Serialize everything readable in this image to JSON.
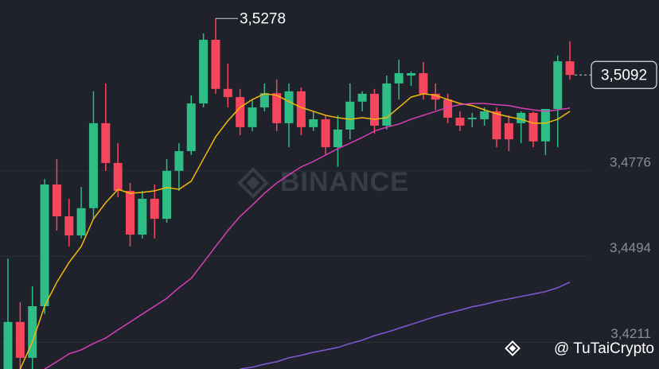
{
  "chart_data": {
    "type": "candlestick",
    "up_color": "#2ebd85",
    "down_color": "#f6465d",
    "open": [
      3.4123,
      3.4278,
      3.416,
      3.433,
      3.4731,
      3.4626,
      3.4563,
      3.4653,
      3.4933,
      3.4802,
      3.471,
      3.4566,
      3.4684,
      3.4618,
      3.4776,
      3.4841,
      3.4998,
      3.5208,
      3.5046,
      3.5019,
      3.492,
      3.4985,
      3.5032,
      3.4933,
      3.5038,
      3.492,
      3.4946,
      3.4854,
      3.4912,
      3.5004,
      3.503,
      3.4925,
      3.5064,
      3.509,
      3.5098,
      3.503,
      3.5011,
      3.4951,
      3.4946,
      3.4946,
      3.4972,
      3.4933,
      3.4933,
      3.4967,
      3.4873,
      3.498,
      3.5137
    ],
    "high": [
      3.4487,
      3.4343,
      3.4396,
      3.4749,
      3.4815,
      3.4684,
      3.4723,
      3.5038,
      3.5064,
      3.4867,
      3.4736,
      3.471,
      3.4731,
      3.4815,
      3.4867,
      3.5025,
      3.5229,
      3.5278,
      3.5129,
      3.5046,
      3.5011,
      3.5064,
      3.5077,
      3.5064,
      3.5051,
      3.4972,
      3.4959,
      3.4959,
      3.5064,
      3.5038,
      3.5046,
      3.509,
      3.5142,
      3.5103,
      3.5135,
      3.5064,
      3.503,
      3.4972,
      3.4967,
      3.4985,
      3.4985,
      3.4959,
      3.4972,
      3.4972,
      3.498,
      3.5156,
      3.5203
    ],
    "low": [
      3.4123,
      3.4123,
      3.4123,
      3.4304,
      3.4579,
      3.4527,
      3.4553,
      3.4618,
      3.4776,
      3.4689,
      3.4527,
      3.4553,
      3.4553,
      3.4605,
      3.471,
      3.4828,
      3.4985,
      3.503,
      3.4985,
      3.4894,
      3.4907,
      3.4972,
      3.4907,
      3.4854,
      3.4894,
      3.4907,
      3.4828,
      3.4789,
      3.488,
      3.4972,
      3.4899,
      3.4912,
      3.5011,
      3.5056,
      3.5011,
      3.4977,
      3.4933,
      3.4907,
      3.492,
      3.4925,
      3.4854,
      3.4841,
      3.4867,
      3.4854,
      3.4828,
      3.4854,
      3.5077
    ],
    "close": [
      3.4278,
      3.416,
      3.433,
      3.4731,
      3.4626,
      3.4563,
      3.4653,
      3.4933,
      3.4802,
      3.471,
      3.4566,
      3.4684,
      3.4618,
      3.4776,
      3.4841,
      3.4998,
      3.5208,
      3.5046,
      3.5019,
      3.492,
      3.4985,
      3.5032,
      3.4933,
      3.5038,
      3.492,
      3.4946,
      3.4854,
      3.4912,
      3.5004,
      3.503,
      3.4925,
      3.5064,
      3.5098,
      3.5098,
      3.503,
      3.5011,
      3.4951,
      3.4925,
      3.4951,
      3.4972,
      3.488,
      3.488,
      3.4967,
      3.4873,
      3.498,
      3.5137,
      3.5092
    ],
    "lines": [
      {
        "color": "#f0b90b",
        "values": [
          null,
          3.4123,
          3.4212,
          3.433,
          3.4409,
          3.4474,
          3.4527,
          3.4618,
          3.4671,
          3.4715,
          3.4702,
          3.4705,
          3.471,
          3.4721,
          3.4715,
          3.4742,
          3.4815,
          3.4888,
          3.4941,
          3.4985,
          3.5011,
          3.503,
          3.5025,
          3.5004,
          3.4985,
          3.4972,
          3.4959,
          3.4951,
          3.4946,
          3.4951,
          3.4946,
          3.4951,
          3.4985,
          3.5019,
          3.503,
          3.5025,
          3.5011,
          3.4998,
          3.4991,
          3.4977,
          3.4964,
          3.4954,
          3.4946,
          3.4933,
          3.4933,
          3.4946,
          3.4972
        ]
      },
      {
        "color": "#d63fb5",
        "values": [
          null,
          null,
          null,
          3.4123,
          3.4147,
          3.4173,
          3.4186,
          3.4207,
          3.4225,
          3.4252,
          3.4278,
          3.4304,
          3.433,
          3.4356,
          3.4391,
          3.4422,
          3.4474,
          3.4527,
          3.4579,
          3.4626,
          3.4663,
          3.4702,
          3.4736,
          3.4763,
          3.4789,
          3.4807,
          3.4828,
          3.4849,
          3.4867,
          3.4886,
          3.4907,
          3.492,
          3.493,
          3.4946,
          3.4959,
          3.4972,
          3.4985,
          3.4994,
          3.4998,
          3.4998,
          3.4994,
          3.4991,
          3.4983,
          3.4977,
          3.4972,
          3.4977,
          3.4983
        ]
      },
      {
        "color": "#8257d8",
        "values": [
          null,
          null,
          null,
          null,
          null,
          null,
          null,
          null,
          null,
          null,
          null,
          null,
          null,
          null,
          null,
          null,
          null,
          null,
          null,
          3.4123,
          3.4129,
          3.4139,
          3.4147,
          3.416,
          3.4168,
          3.4178,
          3.4186,
          3.4194,
          3.4207,
          3.4218,
          3.4233,
          3.4244,
          3.4257,
          3.427,
          3.4283,
          3.4296,
          3.4307,
          3.4317,
          3.4328,
          3.4336,
          3.4346,
          3.4354,
          3.4362,
          3.437,
          3.4378,
          3.4391,
          3.4409
        ]
      }
    ],
    "ylim": [
      3.4123,
      3.5339
    ],
    "yticks": [
      {
        "value": 3.4776,
        "label": "3,4776"
      },
      {
        "value": 3.4494,
        "label": "3,4494"
      },
      {
        "value": 3.4211,
        "label": "3,4211"
      }
    ],
    "grid": true,
    "high_marker": {
      "value": 3.5278,
      "label": "3,5278"
    },
    "last_price": {
      "value": 3.5092,
      "label": "3,5092"
    },
    "watermark": "BINANCE",
    "credit": "@ TuTaiCrypto"
  }
}
